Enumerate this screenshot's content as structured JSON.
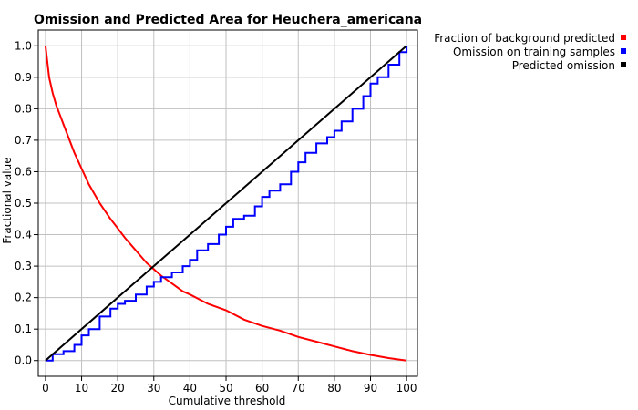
{
  "chart_data": {
    "type": "line",
    "title": "Omission and Predicted Area for Heuchera_americana",
    "xlabel": "Cumulative threshold",
    "ylabel": "Fractional value",
    "xlim": [
      -2,
      103
    ],
    "ylim": [
      -0.05,
      1.05
    ],
    "xticks": [
      "0",
      "10",
      "20",
      "30",
      "40",
      "50",
      "60",
      "70",
      "80",
      "90",
      "100"
    ],
    "yticks": [
      "0.0",
      "0.1",
      "0.2",
      "0.3",
      "0.4",
      "0.5",
      "0.6",
      "0.7",
      "0.8",
      "0.9",
      "1.0"
    ],
    "grid": true,
    "legend_position": "top-right-outside",
    "series": [
      {
        "name": "Fraction of background predicted",
        "color": "#ff0000",
        "x": [
          0,
          0.5,
          1,
          2,
          3,
          4,
          5,
          6,
          8,
          10,
          12,
          15,
          18,
          20,
          22,
          25,
          28,
          30,
          32,
          35,
          38,
          40,
          45,
          50,
          55,
          60,
          65,
          70,
          75,
          80,
          85,
          90,
          95,
          100
        ],
        "y": [
          1.0,
          0.95,
          0.9,
          0.85,
          0.81,
          0.78,
          0.75,
          0.72,
          0.66,
          0.61,
          0.56,
          0.5,
          0.45,
          0.42,
          0.39,
          0.35,
          0.31,
          0.29,
          0.27,
          0.245,
          0.22,
          0.21,
          0.18,
          0.16,
          0.13,
          0.11,
          0.095,
          0.075,
          0.06,
          0.045,
          0.03,
          0.018,
          0.008,
          0.0
        ]
      },
      {
        "name": "Omission on training samples",
        "color": "#0000ff",
        "x": [
          0,
          2,
          5,
          8,
          10,
          12,
          15,
          18,
          20,
          22,
          25,
          28,
          30,
          32,
          35,
          38,
          40,
          42,
          45,
          48,
          50,
          52,
          55,
          58,
          60,
          62,
          65,
          68,
          70,
          72,
          75,
          78,
          80,
          82,
          85,
          88,
          90,
          92,
          95,
          98,
          100
        ],
        "y": [
          0.0,
          0.02,
          0.03,
          0.05,
          0.08,
          0.1,
          0.14,
          0.165,
          0.18,
          0.19,
          0.21,
          0.235,
          0.25,
          0.265,
          0.28,
          0.3,
          0.32,
          0.35,
          0.37,
          0.4,
          0.425,
          0.45,
          0.46,
          0.49,
          0.52,
          0.54,
          0.56,
          0.6,
          0.63,
          0.66,
          0.69,
          0.71,
          0.73,
          0.76,
          0.8,
          0.84,
          0.88,
          0.9,
          0.94,
          0.98,
          1.0
        ]
      },
      {
        "name": "Predicted omission",
        "color": "#000000",
        "x": [
          0,
          100
        ],
        "y": [
          0.0,
          1.0
        ]
      }
    ]
  }
}
